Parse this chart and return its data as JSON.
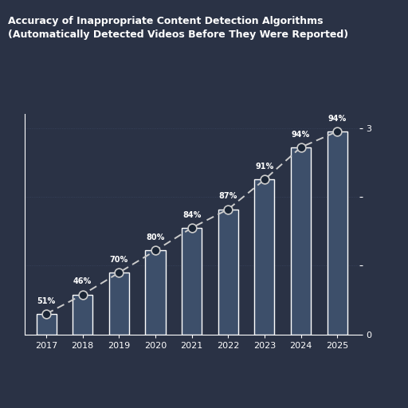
{
  "title": "Accuracy of Inappropriate Content Detection Algorithms\n(Automatically Detected Videos Before They Were Reported)",
  "categories": [
    "2017",
    "2018",
    "2019",
    "2020",
    "2021",
    "2022",
    "2023",
    "2024",
    "2025"
  ],
  "bar_values": [
    0.3,
    0.58,
    0.9,
    1.22,
    1.55,
    1.82,
    2.25,
    2.72,
    2.95
  ],
  "line_values": [
    0.3,
    0.58,
    0.9,
    1.22,
    1.55,
    1.82,
    2.25,
    2.72,
    2.95
  ],
  "line_labels": [
    "51%",
    "46%",
    "70%",
    "80%",
    "84%",
    "87%",
    "91%",
    "94%",
    "94%"
  ],
  "bar_color": "#3d4f6a",
  "bar_edge_color": "#ffffff",
  "line_color": "#cccccc",
  "background_color": "#2a3245",
  "text_color": "#ffffff",
  "grid_color": "#3a4560",
  "ylim": [
    0,
    3.2
  ],
  "yticks": [
    0,
    1,
    2,
    3
  ],
  "ytick_labels": [
    "0",
    "",
    "",
    "3"
  ],
  "title_fontsize": 9,
  "annotation_fontsize": 7,
  "axis_fontsize": 8,
  "bar_width": 0.55
}
